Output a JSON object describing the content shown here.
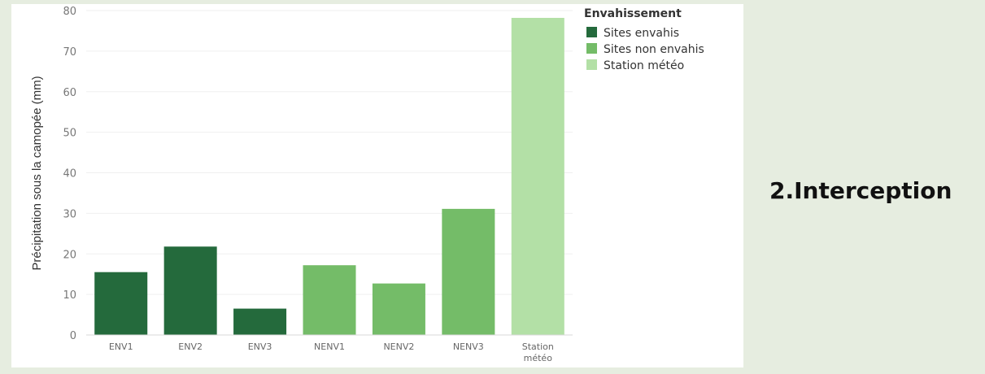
{
  "side_title": "2.Interception",
  "colors": {
    "envahis": "#246a3c",
    "non_envahis": "#74bc68",
    "station": "#b3e0a6"
  },
  "chart_data": {
    "type": "bar",
    "title": "",
    "xlabel": "",
    "ylabel": "Précipitation sous la camopée (mm)",
    "ylim": [
      0,
      80
    ],
    "yticks": [
      0,
      10,
      20,
      30,
      40,
      50,
      60,
      70,
      80
    ],
    "grid": true,
    "legend_position": "top-right",
    "legend_title": "Envahissement",
    "legend": [
      {
        "label": "Sites envahis",
        "color": "#246a3c"
      },
      {
        "label": "Sites non envahis",
        "color": "#74bc68"
      },
      {
        "label": "Station météo",
        "color": "#b3e0a6"
      }
    ],
    "bars": [
      {
        "category": "ENV1",
        "value": 15.5,
        "group": "Sites envahis"
      },
      {
        "category": "ENV2",
        "value": 21.8,
        "group": "Sites envahis"
      },
      {
        "category": "ENV3",
        "value": 6.5,
        "group": "Sites envahis"
      },
      {
        "category": "NENV1",
        "value": 17.2,
        "group": "Sites non envahis"
      },
      {
        "category": "NENV2",
        "value": 12.7,
        "group": "Sites non envahis"
      },
      {
        "category": "NENV3",
        "value": 31.1,
        "group": "Sites non envahis"
      },
      {
        "category": "Station météo",
        "value": 78.2,
        "group": "Station météo"
      }
    ]
  }
}
